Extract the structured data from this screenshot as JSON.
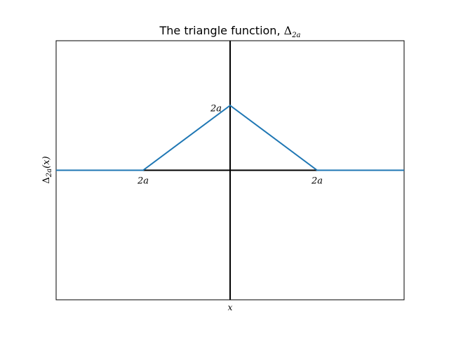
{
  "chart_data": {
    "type": "line",
    "title": "The triangle function, ",
    "title_symbol": "Δ",
    "title_sub": "2a",
    "xlabel": "x",
    "ylabel_symbol": "Δ",
    "ylabel_sub": "2a",
    "ylabel_arg": "(x)",
    "xlim": [
      -2,
      2
    ],
    "ylim": [
      -1,
      1
    ],
    "series": [
      {
        "name": "triangle",
        "color": "#1f77b4",
        "x": [
          -2,
          -1,
          0,
          1,
          2
        ],
        "y": [
          0,
          0,
          0.5,
          0,
          0
        ]
      }
    ],
    "annotations": [
      {
        "text": "2a",
        "x": 0,
        "y": 0.5,
        "anchor": "left-of-peak"
      },
      {
        "text": "2a",
        "x": -1,
        "y": 0,
        "anchor": "below"
      },
      {
        "text": "2a",
        "x": 1,
        "y": 0,
        "anchor": "below"
      }
    ],
    "axis_color": "#000000"
  }
}
